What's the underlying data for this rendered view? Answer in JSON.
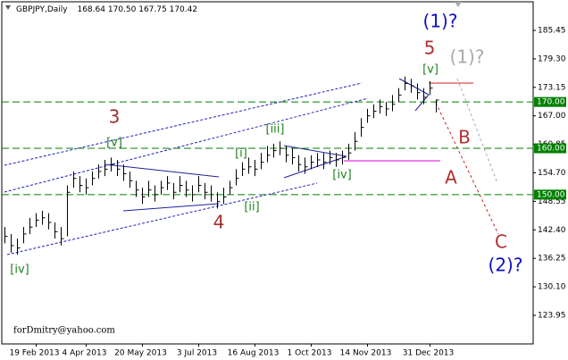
{
  "chart_data": {
    "type": "ohlc",
    "header": {
      "symbol": "GBPJPY,Daily",
      "open": 168.64,
      "high": {
        "value": 170.5,
        "label": "170.50"
      },
      "low": 167.75,
      "close": 170.42
    },
    "xlim": [
      -0.5,
      84.5
    ],
    "xticks": [
      {
        "value": 5,
        "label": "19 Feb 2013"
      },
      {
        "value": 13,
        "label": "4 Apr 2013"
      },
      {
        "value": 22,
        "label": "20 May 2013"
      },
      {
        "value": 31,
        "label": "3 Jul 2013"
      },
      {
        "value": 40,
        "label": "16 Aug 2013"
      },
      {
        "value": 49,
        "label": "1 Oct 2013"
      },
      {
        "value": 58,
        "label": "14 Nov 2013"
      },
      {
        "value": 68,
        "label": "31 Dec 2013"
      }
    ],
    "ylim": [
      117.78,
      191.62
    ],
    "yticks": [
      185.45,
      {
        "value": 179.3,
        "label": "179.30"
      },
      173.15,
      {
        "value": 167,
        "label": "167.00"
      },
      160.85,
      {
        "value": 154.7,
        "label": "154.70"
      },
      148.55,
      {
        "value": 142.4,
        "label": "142.40"
      },
      136.25,
      {
        "value": 130.1,
        "label": "130.10"
      },
      123.95
    ],
    "bar_color": "#000000",
    "series": {
      "high": [
        143,
        141.5,
        140.5,
        143,
        145,
        146,
        146.5,
        146,
        144,
        143,
        152,
        155,
        154,
        153.5,
        155,
        156.5,
        157.5,
        158,
        157.5,
        156.5,
        155,
        153,
        151.5,
        153,
        152,
        153,
        154,
        152.5,
        154,
        153,
        152,
        154,
        152.5,
        152,
        150.5,
        151.5,
        153,
        155.5,
        157,
        158,
        157.5,
        159,
        160.5,
        161,
        161.5,
        160.5,
        160,
        158.5,
        158,
        158.5,
        159,
        159,
        159.5,
        159,
        159.5,
        161,
        163.5,
        166.5,
        168.5,
        169.5,
        170.5,
        170,
        171.5,
        173,
        175.5,
        175,
        174,
        173,
        174.5,
        170.5
      ],
      "low": [
        139.5,
        137.5,
        137,
        139.5,
        141.5,
        143,
        143.5,
        142.5,
        140.5,
        139,
        141,
        151.5,
        150.5,
        150,
        152,
        153.5,
        154,
        155,
        154,
        153,
        151.5,
        149.5,
        148,
        149.5,
        148.5,
        150,
        151,
        149,
        150.5,
        149.5,
        148.5,
        150.5,
        149,
        148.5,
        147,
        148,
        150,
        152,
        154,
        154.5,
        154,
        155.5,
        157,
        158,
        158.5,
        157,
        156.5,
        155,
        154.5,
        155.5,
        156,
        155.5,
        156.5,
        156,
        156.5,
        157.5,
        159.5,
        162.5,
        165.5,
        166.5,
        167.5,
        167,
        168,
        170,
        172.5,
        172,
        170.5,
        169.5,
        171.5,
        167.75
      ],
      "close": [
        141,
        139,
        138.5,
        141.5,
        143,
        144.5,
        145,
        144,
        142,
        140.5,
        150.5,
        153.5,
        152,
        151.5,
        153.5,
        155,
        155.5,
        156.5,
        155.5,
        154.5,
        153,
        151,
        149.5,
        151,
        150,
        151.5,
        152.5,
        150.5,
        152,
        151,
        150,
        152,
        150.5,
        150,
        148.5,
        149.5,
        151.5,
        153.5,
        155.5,
        156,
        155.5,
        157,
        158.5,
        159.5,
        160,
        158.5,
        158,
        156.5,
        156,
        157,
        157.5,
        157,
        158,
        157.5,
        158,
        159,
        161.5,
        164.5,
        167,
        168,
        169,
        168.5,
        169.5,
        171.5,
        174,
        173.5,
        172,
        171,
        173,
        170.42
      ]
    },
    "levels": {
      "color": "#008000",
      "values": [
        {
          "value": 170,
          "label": "170.00"
        },
        {
          "value": 160,
          "label": "160.00"
        },
        {
          "value": 150,
          "label": "150.00"
        }
      ]
    },
    "annotations": [
      {
        "text": "(1)?",
        "color": "#1010c0"
      },
      {
        "text": "5",
        "color": "#b03030"
      },
      {
        "text": "[v]",
        "color": "#208020"
      },
      {
        "text": "(1)?",
        "color": "#aaaaaa"
      },
      {
        "text": "3",
        "color": "#a03030"
      },
      {
        "text": "[v]",
        "color": "#208020"
      },
      {
        "text": "[iii]",
        "color": "#208020"
      },
      {
        "text": "[i]",
        "color": "#208020"
      },
      {
        "text": "[iv]",
        "color": "#208020"
      },
      {
        "text": "B",
        "color": "#b03030"
      },
      {
        "text": "A",
        "color": "#b03030"
      },
      {
        "text": "4",
        "color": "#a03030"
      },
      {
        "text": "[ii]",
        "color": "#208020"
      },
      {
        "text": "C",
        "color": "#b03030"
      },
      {
        "text": "(2)?",
        "color": "#1010c0"
      },
      {
        "text": "[iv]",
        "color": "#208020"
      }
    ],
    "watermark": "forDmitry@yahoo.com"
  }
}
